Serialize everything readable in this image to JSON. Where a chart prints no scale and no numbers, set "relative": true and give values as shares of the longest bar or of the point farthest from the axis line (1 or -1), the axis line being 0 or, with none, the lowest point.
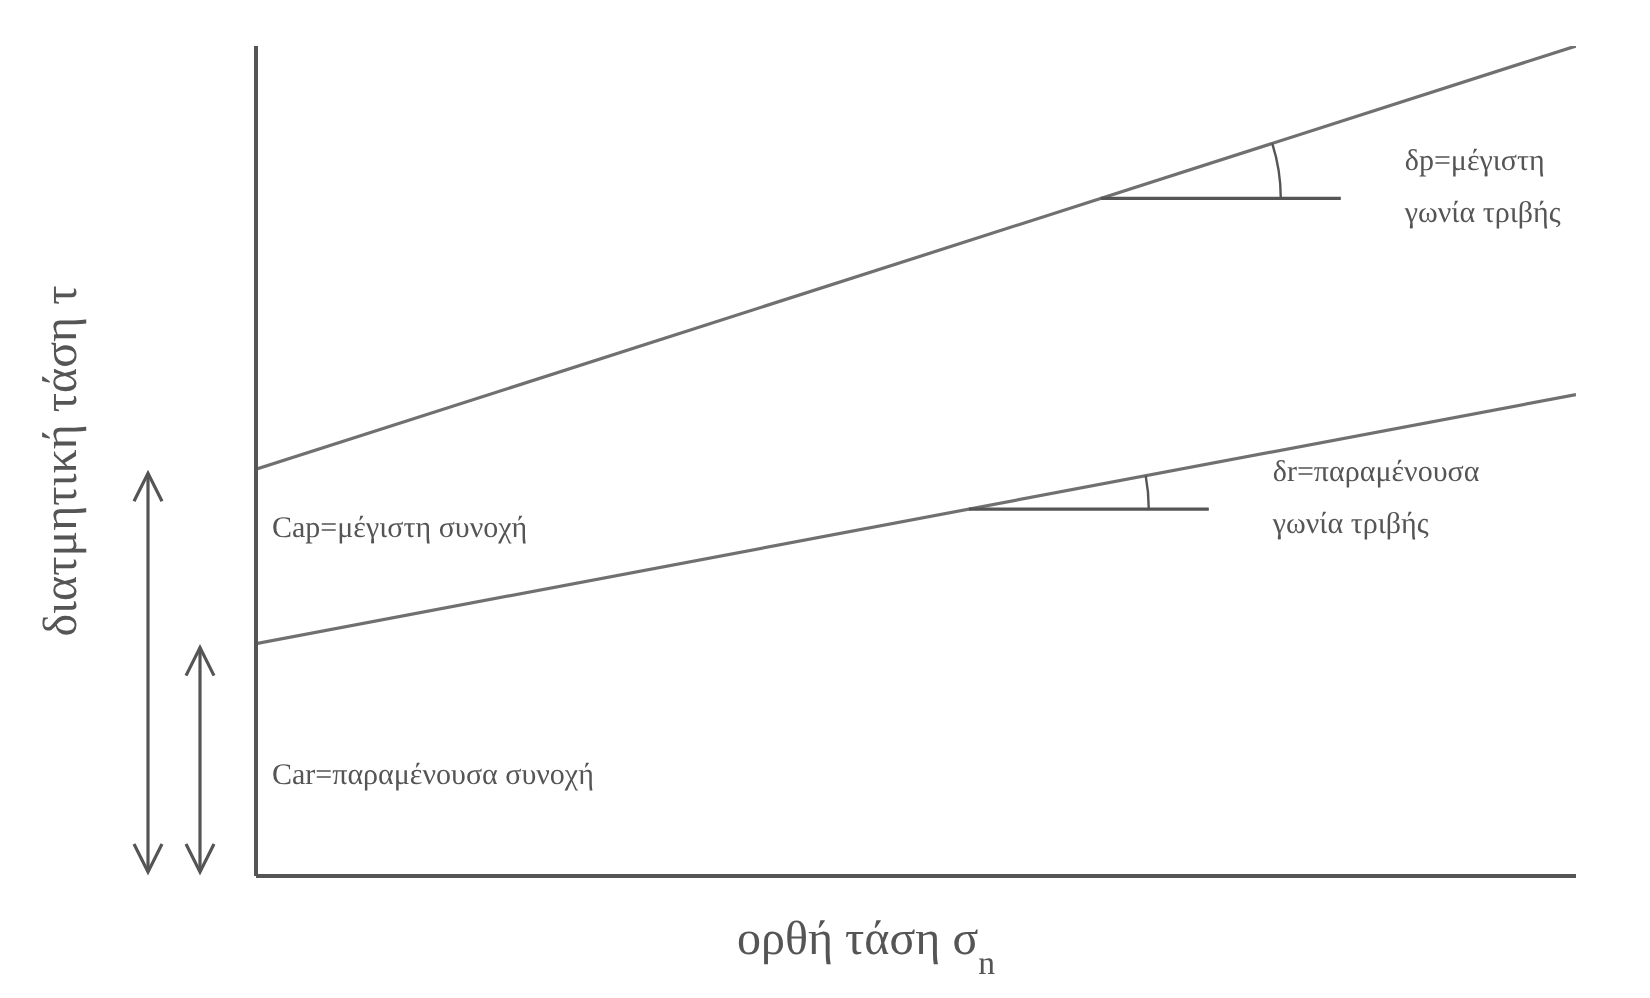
{
  "chart_data": {
    "type": "line",
    "relative": true,
    "xlabel": "ορθή τάση σ$_{n}$",
    "ylabel": "διατμητική τάση τ",
    "categories": [
      null,
      null
    ],
    "series": [
      {
        "color": "#707070",
        "values": [
          0.49,
          1
        ]
      },
      {
        "color": "#707070",
        "values": [
          0.28,
          0.58
        ]
      }
    ],
    "annotations": [
      "δp=μέγιστη γωνία τριβής",
      "δr=παραμένουσα γωνία τριβής",
      "Cap=μέγιστη συνοχή",
      "Car=παραμένουσα συνοχή"
    ],
    "marker": "none",
    "line_style": "solid",
    "grid": false
  }
}
